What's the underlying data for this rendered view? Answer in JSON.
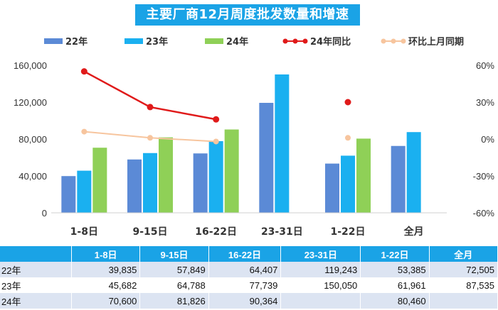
{
  "title": "主要厂商12月周度批发数量和增速",
  "colors": {
    "y22": "#5b8ad6",
    "y23": "#1ab0f0",
    "y24": "#8fd057",
    "yoy": "#e01a1a",
    "mom": "#f7c59e",
    "header": "#1aa3e6",
    "rowAlt": "#dce4f2"
  },
  "chart_data": {
    "type": "bar",
    "categories": [
      "1-8日",
      "9-15日",
      "16-22日",
      "23-31日",
      "1-22日",
      "全月"
    ],
    "series": [
      {
        "name": "22年",
        "kind": "bar",
        "values": [
          39835,
          57849,
          64407,
          119243,
          53385,
          72505
        ]
      },
      {
        "name": "23年",
        "kind": "bar",
        "values": [
          45682,
          64788,
          77739,
          150050,
          61961,
          87535
        ]
      },
      {
        "name": "24年",
        "kind": "bar",
        "values": [
          70600,
          81826,
          90364,
          null,
          80460,
          null
        ]
      },
      {
        "name": "24年同比",
        "kind": "line",
        "axis": "right",
        "values": [
          55,
          26,
          16,
          null,
          30,
          null
        ]
      },
      {
        "name": "环比上月同期",
        "kind": "line",
        "axis": "right",
        "values": [
          6,
          1,
          -2,
          null,
          1,
          null
        ]
      }
    ],
    "y_left": {
      "ticks": [
        "0",
        "40,000",
        "80,000",
        "120,000",
        "160,000"
      ],
      "range": [
        0,
        160000
      ]
    },
    "y_right": {
      "ticks": [
        "-60%",
        "-30%",
        "0%",
        "30%",
        "60%"
      ],
      "range": [
        -60,
        60
      ]
    },
    "legend_position": "top"
  },
  "table": {
    "header": [
      "",
      "1-8日",
      "9-15日",
      "16-22日",
      "23-31日",
      "1-22日",
      "全月"
    ],
    "rows": [
      {
        "label": "22年",
        "cells": [
          "39,835",
          "57,849",
          "64,407",
          "119,243",
          "53,385",
          "72,505"
        ]
      },
      {
        "label": "23年",
        "cells": [
          "45,682",
          "64,788",
          "77,739",
          "150,050",
          "61,961",
          "87,535"
        ]
      },
      {
        "label": "24年",
        "cells": [
          "70,600",
          "81,826",
          "90,364",
          "",
          "80,460",
          ""
        ]
      }
    ]
  }
}
